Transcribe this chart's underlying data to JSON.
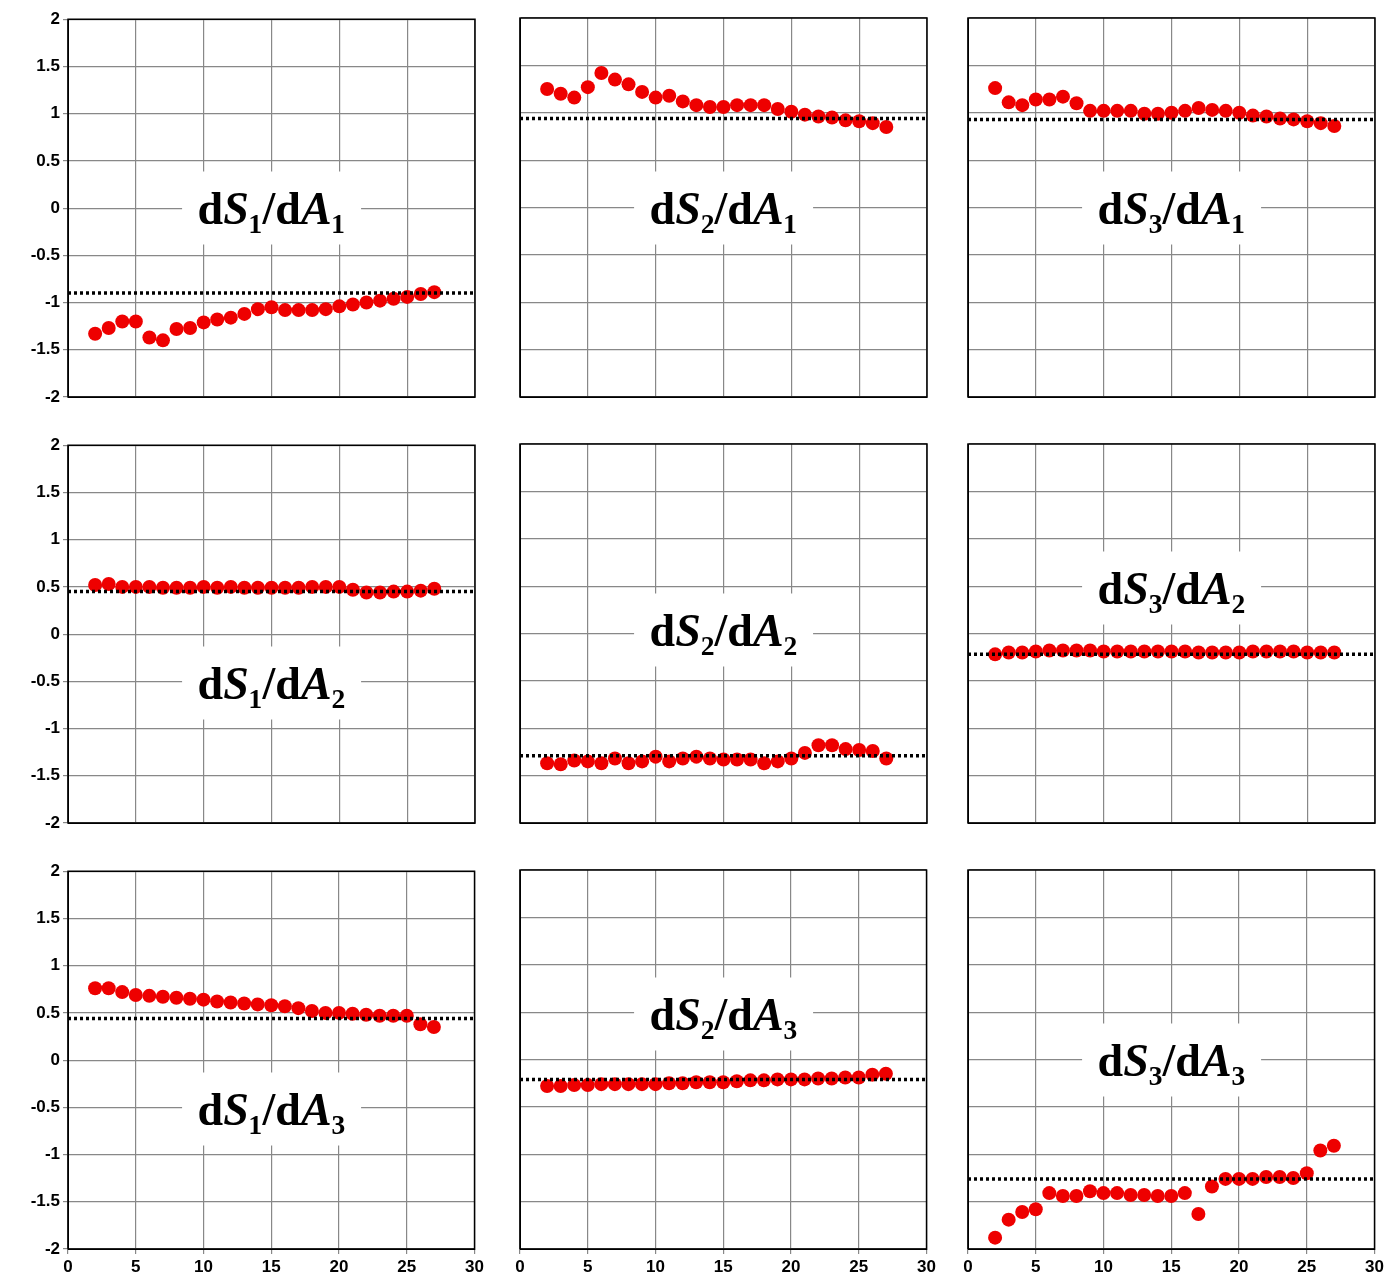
{
  "chart_data": [
    {
      "type": "scatter",
      "x": [
        2,
        3,
        4,
        5,
        6,
        7,
        8,
        9,
        10,
        11,
        12,
        13,
        14,
        15,
        16,
        17,
        18,
        19,
        20,
        21,
        22,
        23,
        24,
        25,
        26,
        27
      ],
      "series": [
        {
          "color": "#ee0000",
          "values": [
            -1.33,
            -1.27,
            -1.2,
            -1.2,
            -1.37,
            -1.4,
            -1.28,
            -1.27,
            -1.21,
            -1.18,
            -1.16,
            -1.12,
            -1.07,
            -1.05,
            -1.08,
            -1.08,
            -1.08,
            -1.07,
            -1.04,
            -1.02,
            -1.0,
            -0.98,
            -0.96,
            -0.94,
            -0.91,
            -0.89
          ]
        }
      ],
      "marker": "circle",
      "xlim": [
        0,
        30
      ],
      "xticks": [
        0,
        5,
        10,
        15,
        20,
        25,
        30
      ],
      "ylim": [
        -2,
        2
      ],
      "yticks": [
        -2,
        -1.5,
        -1,
        -0.5,
        0,
        0.5,
        1,
        1.5,
        2
      ],
      "grid": true,
      "tick_labels": "y",
      "ref_lines": [
        {
          "axis": "y",
          "value": -0.9,
          "color": "#000000",
          "line_style": "dotted"
        }
      ],
      "annotations": [
        "dS₁/dA₁"
      ]
    },
    {
      "type": "scatter",
      "x": [
        2,
        3,
        4,
        5,
        6,
        7,
        8,
        9,
        10,
        11,
        12,
        13,
        14,
        15,
        16,
        17,
        18,
        19,
        20,
        21,
        22,
        23,
        24,
        25,
        26,
        27
      ],
      "series": [
        {
          "color": "#ee0000",
          "values": [
            1.25,
            1.2,
            1.16,
            1.27,
            1.42,
            1.35,
            1.3,
            1.22,
            1.16,
            1.18,
            1.12,
            1.08,
            1.06,
            1.06,
            1.08,
            1.08,
            1.08,
            1.04,
            1.01,
            0.98,
            0.96,
            0.95,
            0.92,
            0.91,
            0.89,
            0.85
          ]
        }
      ],
      "marker": "circle",
      "xlim": [
        0,
        30
      ],
      "xticks": [
        0,
        5,
        10,
        15,
        20,
        25,
        30
      ],
      "ylim": [
        -2,
        2
      ],
      "yticks": [
        -2,
        -1.5,
        -1,
        -0.5,
        0,
        0.5,
        1,
        1.5,
        2
      ],
      "grid": true,
      "tick_labels": false,
      "ref_lines": [
        {
          "axis": "y",
          "value": 0.94,
          "color": "#000000",
          "line_style": "dotted"
        }
      ],
      "annotations": [
        "dS₂/dA₁"
      ]
    },
    {
      "type": "scatter",
      "x": [
        2,
        3,
        4,
        5,
        6,
        7,
        8,
        9,
        10,
        11,
        12,
        13,
        14,
        15,
        16,
        17,
        18,
        19,
        20,
        21,
        22,
        23,
        24,
        25,
        26,
        27
      ],
      "series": [
        {
          "color": "#ee0000",
          "values": [
            1.26,
            1.11,
            1.08,
            1.14,
            1.14,
            1.17,
            1.1,
            1.02,
            1.02,
            1.02,
            1.02,
            0.99,
            0.99,
            1.0,
            1.02,
            1.05,
            1.03,
            1.02,
            1.0,
            0.97,
            0.96,
            0.94,
            0.93,
            0.91,
            0.89,
            0.86
          ]
        }
      ],
      "marker": "circle",
      "xlim": [
        0,
        30
      ],
      "xticks": [
        0,
        5,
        10,
        15,
        20,
        25,
        30
      ],
      "ylim": [
        -2,
        2
      ],
      "yticks": [
        -2,
        -1.5,
        -1,
        -0.5,
        0,
        0.5,
        1,
        1.5,
        2
      ],
      "grid": true,
      "tick_labels": false,
      "ref_lines": [
        {
          "axis": "y",
          "value": 0.93,
          "color": "#000000",
          "line_style": "dotted"
        }
      ],
      "annotations": [
        "dS₃/dA₁"
      ]
    },
    {
      "type": "scatter",
      "x": [
        2,
        3,
        4,
        5,
        6,
        7,
        8,
        9,
        10,
        11,
        12,
        13,
        14,
        15,
        16,
        17,
        18,
        19,
        20,
        21,
        22,
        23,
        24,
        25,
        26,
        27
      ],
      "series": [
        {
          "color": "#ee0000",
          "values": [
            0.52,
            0.53,
            0.5,
            0.5,
            0.5,
            0.49,
            0.49,
            0.49,
            0.5,
            0.49,
            0.5,
            0.49,
            0.49,
            0.49,
            0.49,
            0.49,
            0.5,
            0.5,
            0.5,
            0.47,
            0.44,
            0.44,
            0.45,
            0.45,
            0.46,
            0.48
          ]
        }
      ],
      "marker": "circle",
      "xlim": [
        0,
        30
      ],
      "xticks": [
        0,
        5,
        10,
        15,
        20,
        25,
        30
      ],
      "ylim": [
        -2,
        2
      ],
      "yticks": [
        -2,
        -1.5,
        -1,
        -0.5,
        0,
        0.5,
        1,
        1.5,
        2
      ],
      "grid": true,
      "tick_labels": "y",
      "ref_lines": [
        {
          "axis": "y",
          "value": 0.45,
          "color": "#000000",
          "line_style": "dotted"
        }
      ],
      "annotations": [
        "dS₁/dA₂"
      ]
    },
    {
      "type": "scatter",
      "x": [
        2,
        3,
        4,
        5,
        6,
        7,
        8,
        9,
        10,
        11,
        12,
        13,
        14,
        15,
        16,
        17,
        18,
        19,
        20,
        21,
        22,
        23,
        24,
        25,
        26,
        27
      ],
      "series": [
        {
          "color": "#ee0000",
          "values": [
            -1.37,
            -1.38,
            -1.34,
            -1.35,
            -1.37,
            -1.32,
            -1.37,
            -1.35,
            -1.3,
            -1.35,
            -1.32,
            -1.3,
            -1.32,
            -1.33,
            -1.33,
            -1.33,
            -1.37,
            -1.35,
            -1.32,
            -1.26,
            -1.18,
            -1.18,
            -1.22,
            -1.23,
            -1.24,
            -1.32
          ]
        }
      ],
      "marker": "circle",
      "xlim": [
        0,
        30
      ],
      "xticks": [
        0,
        5,
        10,
        15,
        20,
        25,
        30
      ],
      "ylim": [
        -2,
        2
      ],
      "yticks": [
        -2,
        -1.5,
        -1,
        -0.5,
        0,
        0.5,
        1,
        1.5,
        2
      ],
      "grid": true,
      "tick_labels": false,
      "ref_lines": [
        {
          "axis": "y",
          "value": -1.29,
          "color": "#000000",
          "line_style": "dotted"
        }
      ],
      "annotations": [
        "dS₂/dA₂"
      ]
    },
    {
      "type": "scatter",
      "x": [
        2,
        3,
        4,
        5,
        6,
        7,
        8,
        9,
        10,
        11,
        12,
        13,
        14,
        15,
        16,
        17,
        18,
        19,
        20,
        21,
        22,
        23,
        24,
        25,
        26,
        27
      ],
      "series": [
        {
          "color": "#ee0000",
          "values": [
            -0.22,
            -0.2,
            -0.2,
            -0.19,
            -0.18,
            -0.18,
            -0.18,
            -0.18,
            -0.19,
            -0.19,
            -0.19,
            -0.19,
            -0.19,
            -0.19,
            -0.19,
            -0.2,
            -0.2,
            -0.2,
            -0.2,
            -0.19,
            -0.19,
            -0.19,
            -0.19,
            -0.2,
            -0.2,
            -0.2
          ]
        }
      ],
      "marker": "circle",
      "xlim": [
        0,
        30
      ],
      "xticks": [
        0,
        5,
        10,
        15,
        20,
        25,
        30
      ],
      "ylim": [
        -2,
        2
      ],
      "yticks": [
        -2,
        -1.5,
        -1,
        -0.5,
        0,
        0.5,
        1,
        1.5,
        2
      ],
      "grid": true,
      "tick_labels": false,
      "ref_lines": [
        {
          "axis": "y",
          "value": -0.22,
          "color": "#000000",
          "line_style": "dotted"
        }
      ],
      "annotations": [
        "dS₃/dA₂"
      ]
    },
    {
      "type": "scatter",
      "x": [
        2,
        3,
        4,
        5,
        6,
        7,
        8,
        9,
        10,
        11,
        12,
        13,
        14,
        15,
        16,
        17,
        18,
        19,
        20,
        21,
        22,
        23,
        24,
        25,
        26,
        27
      ],
      "series": [
        {
          "color": "#ee0000",
          "values": [
            0.76,
            0.76,
            0.72,
            0.69,
            0.68,
            0.67,
            0.66,
            0.65,
            0.64,
            0.62,
            0.61,
            0.6,
            0.59,
            0.58,
            0.57,
            0.55,
            0.52,
            0.5,
            0.5,
            0.49,
            0.48,
            0.47,
            0.47,
            0.47,
            0.38,
            0.35
          ]
        }
      ],
      "marker": "circle",
      "xlim": [
        0,
        30
      ],
      "xticks": [
        0,
        5,
        10,
        15,
        20,
        25,
        30
      ],
      "ylim": [
        -2,
        2
      ],
      "yticks": [
        -2,
        -1.5,
        -1,
        -0.5,
        0,
        0.5,
        1,
        1.5,
        2
      ],
      "grid": true,
      "ref_lines": [
        {
          "axis": "y",
          "value": 0.44,
          "color": "#000000",
          "line_style": "dotted"
        }
      ],
      "annotations": [
        "dS₁/dA₃"
      ]
    },
    {
      "type": "scatter",
      "x": [
        2,
        3,
        4,
        5,
        6,
        7,
        8,
        9,
        10,
        11,
        12,
        13,
        14,
        15,
        16,
        17,
        18,
        19,
        20,
        21,
        22,
        23,
        24,
        25,
        26,
        27
      ],
      "series": [
        {
          "color": "#ee0000",
          "values": [
            -0.28,
            -0.28,
            -0.27,
            -0.27,
            -0.26,
            -0.26,
            -0.26,
            -0.26,
            -0.26,
            -0.25,
            -0.25,
            -0.24,
            -0.24,
            -0.24,
            -0.23,
            -0.22,
            -0.22,
            -0.21,
            -0.21,
            -0.21,
            -0.2,
            -0.2,
            -0.19,
            -0.19,
            -0.16,
            -0.15
          ]
        }
      ],
      "marker": "circle",
      "xlim": [
        0,
        30
      ],
      "xticks": [
        0,
        5,
        10,
        15,
        20,
        25,
        30
      ],
      "ylim": [
        -2,
        2
      ],
      "yticks": [
        -2,
        -1.5,
        -1,
        -0.5,
        0,
        0.5,
        1,
        1.5,
        2
      ],
      "grid": true,
      "tick_labels": "x",
      "ref_lines": [
        {
          "axis": "y",
          "value": -0.21,
          "color": "#000000",
          "line_style": "dotted"
        }
      ],
      "annotations": [
        "dS₂/dA₃"
      ]
    },
    {
      "type": "scatter",
      "x": [
        2,
        3,
        4,
        5,
        6,
        7,
        8,
        9,
        10,
        11,
        12,
        13,
        14,
        15,
        16,
        17,
        18,
        19,
        20,
        21,
        22,
        23,
        24,
        25,
        26,
        27
      ],
      "series": [
        {
          "color": "#ee0000",
          "values": [
            -1.88,
            -1.69,
            -1.61,
            -1.58,
            -1.41,
            -1.44,
            -1.44,
            -1.39,
            -1.41,
            -1.41,
            -1.43,
            -1.43,
            -1.44,
            -1.44,
            -1.41,
            -1.63,
            -1.34,
            -1.26,
            -1.26,
            -1.26,
            -1.24,
            -1.24,
            -1.25,
            -1.2,
            -0.96,
            -0.91
          ]
        }
      ],
      "marker": "circle",
      "xlim": [
        0,
        30
      ],
      "xticks": [
        0,
        5,
        10,
        15,
        20,
        25,
        30
      ],
      "ylim": [
        -2,
        2
      ],
      "yticks": [
        -2,
        -1.5,
        -1,
        -0.5,
        0,
        0.5,
        1,
        1.5,
        2
      ],
      "grid": true,
      "tick_labels": "x",
      "ref_lines": [
        {
          "axis": "y",
          "value": -1.26,
          "color": "#000000",
          "line_style": "dotted"
        }
      ],
      "annotations": [
        "dS₃/dA₃"
      ]
    }
  ]
}
